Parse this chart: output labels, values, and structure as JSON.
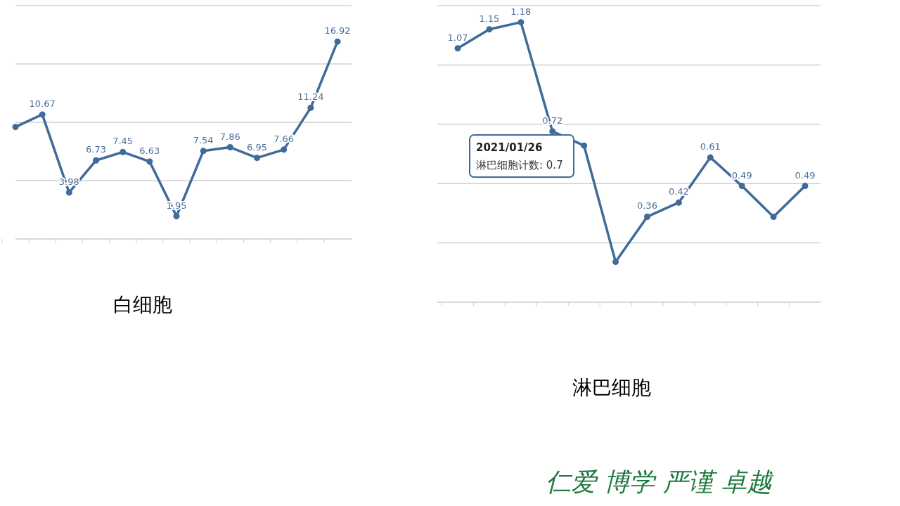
{
  "chart_data": [
    {
      "type": "line",
      "title": "白细胞",
      "categories": [
        null,
        null,
        null,
        null,
        null,
        null,
        null,
        null,
        null,
        null,
        null,
        null,
        null
      ],
      "values": [
        9.6,
        10.67,
        3.98,
        6.73,
        7.45,
        6.63,
        1.95,
        7.54,
        7.86,
        6.95,
        7.66,
        11.24,
        16.92
      ],
      "value_labels": [
        null,
        "10.67",
        "3.98",
        "6.73",
        "7.45",
        "6.63",
        "1.95",
        "7.54",
        "7.86",
        "6.95",
        "7.66",
        "11.24",
        "16.92"
      ],
      "color": "#3f6a9a",
      "ylim": [
        0,
        20
      ],
      "yticks": [
        {
          "value": 5,
          "label": null
        },
        {
          "value": 10,
          "label": null
        },
        {
          "value": 15,
          "label": null
        },
        {
          "value": 20,
          "label": null
        }
      ],
      "grid": "y",
      "marker": "circle"
    },
    {
      "type": "line",
      "title": "淋巴细胞",
      "categories": [
        null,
        null,
        null,
        null,
        null,
        null,
        null,
        null,
        null,
        null,
        null,
        null
      ],
      "values": [
        1.07,
        1.15,
        1.18,
        0.72,
        0.66,
        0.17,
        0.36,
        0.42,
        0.61,
        0.49,
        0.36,
        0.49
      ],
      "value_labels": [
        "1.07",
        "1.15",
        "1.18",
        "0.72",
        null,
        null,
        "0.36",
        "0.42",
        "0.61",
        "0.49",
        null,
        "0.49"
      ],
      "color": "#3f6a9a",
      "ylim": [
        0,
        1.25
      ],
      "yticks": [
        {
          "value": 0.25,
          "label": null
        },
        {
          "value": 0.5,
          "label": null
        },
        {
          "value": 0.75,
          "label": null
        },
        {
          "value": 1,
          "label": null
        },
        {
          "value": 1.25,
          "label": null
        }
      ],
      "grid": "y",
      "marker": "circle",
      "annotations": [
        "2021/01/26",
        "淋巴细胞计数: 0.7",
        "仁爱 博学 严谨 卓越"
      ]
    }
  ]
}
